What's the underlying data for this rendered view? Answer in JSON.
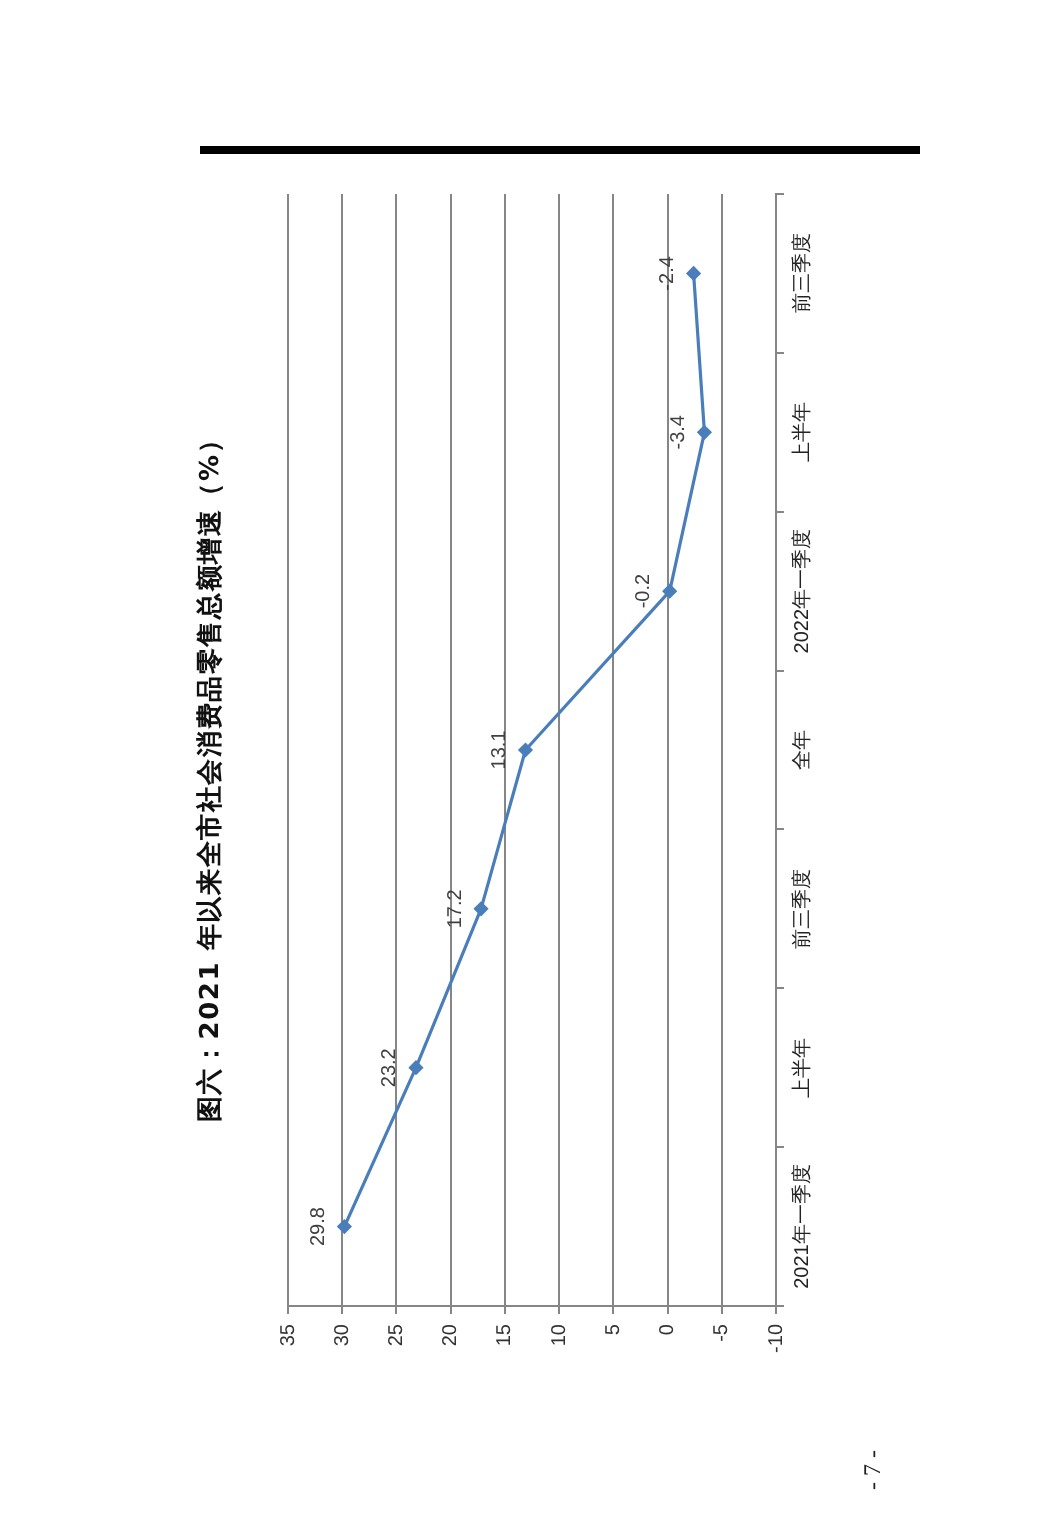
{
  "chart_data": {
    "type": "line",
    "title": "图六：2021 年以来全市社会消费品零售总额增速（%）",
    "orientation": "horizontal",
    "categories": [
      "前三季度",
      "上半年",
      "2022年一季度",
      "全年",
      "前三季度",
      "上半年",
      "2021年一季度"
    ],
    "series": [
      {
        "color": "#4a7ebb",
        "values": [
          -2.4,
          -3.4,
          -0.2,
          13.1,
          17.2,
          23.2,
          29.8
        ]
      }
    ],
    "xlim": [
      35,
      -10
    ],
    "xticks": [
      35,
      30,
      25,
      20,
      15,
      10,
      5,
      0,
      -5,
      -10
    ],
    "grid": "x",
    "marker": "diamond",
    "line_style": "solid",
    "data_labels": true,
    "annotations": [
      "- 7 -"
    ]
  }
}
